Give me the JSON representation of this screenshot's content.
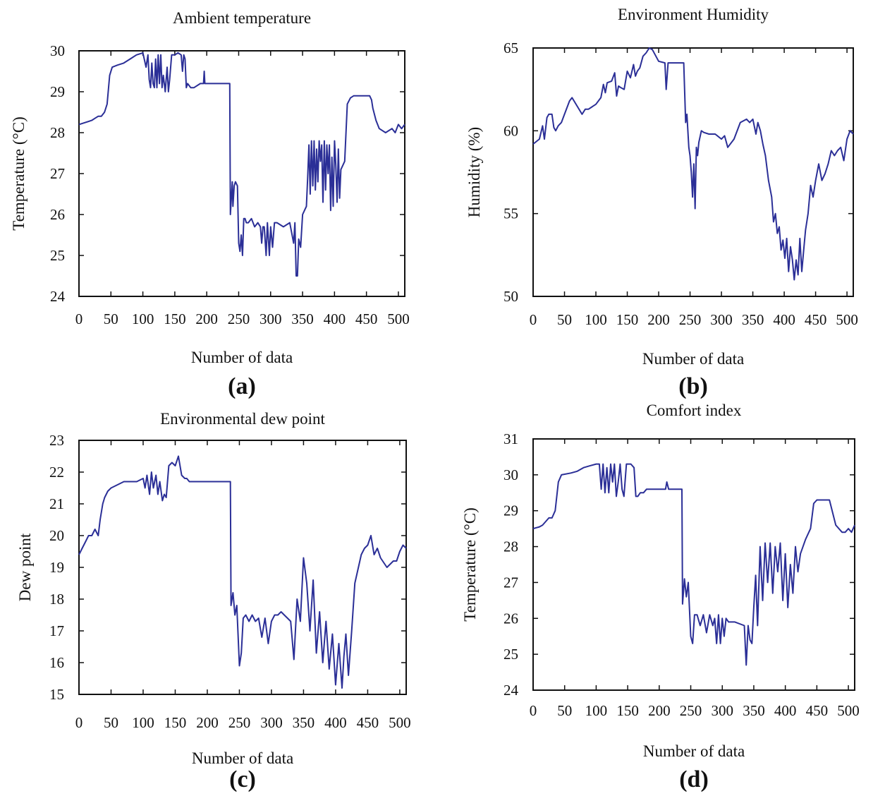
{
  "colors": {
    "series": "#2b2f97",
    "axes": "#111111",
    "background": "#ffffff"
  },
  "chart_data": [
    {
      "id": "a",
      "type": "line",
      "panel_label": "(a)",
      "title": "Ambient temperature",
      "xlabel": "Number of data",
      "ylabel": "Temperature (°C)",
      "xlim": [
        0,
        510
      ],
      "ylim": [
        24,
        30
      ],
      "xticks": [
        0,
        50,
        100,
        150,
        200,
        250,
        300,
        350,
        400,
        450,
        500
      ],
      "yticks": [
        24,
        25,
        26,
        27,
        28,
        29,
        30
      ],
      "grid": false,
      "series": [
        {
          "x": [
            0,
            20,
            25,
            30,
            35,
            40,
            44,
            48,
            52,
            60,
            70,
            80,
            90,
            100,
            105,
            108,
            110,
            112,
            114,
            116,
            118,
            120,
            122,
            124,
            126,
            128,
            130,
            132,
            135,
            138,
            140,
            142,
            145,
            150,
            155,
            160,
            162,
            164,
            166,
            168,
            170,
            175,
            180,
            190,
            195,
            196,
            197,
            200,
            210,
            220,
            236,
            237,
            240,
            241,
            243,
            245,
            248,
            250,
            252,
            254,
            256,
            258,
            260,
            262,
            265,
            270,
            275,
            280,
            284,
            286,
            288,
            290,
            293,
            295,
            298,
            300,
            303,
            306,
            310,
            320,
            330,
            336,
            338,
            340,
            342,
            344,
            347,
            350,
            353,
            356,
            358,
            360,
            362,
            364,
            366,
            368,
            370,
            372,
            374,
            376,
            378,
            380,
            382,
            384,
            386,
            388,
            390,
            392,
            394,
            396,
            398,
            400,
            402,
            404,
            406,
            408,
            410,
            413,
            416,
            420,
            425,
            430,
            440,
            445,
            450,
            455,
            458,
            460,
            465,
            470,
            480,
            490,
            495,
            500,
            505,
            510
          ],
          "y": [
            28.2,
            28.3,
            28.35,
            28.4,
            28.4,
            28.5,
            28.7,
            29.4,
            29.6,
            29.65,
            29.7,
            29.8,
            29.9,
            29.95,
            29.6,
            29.9,
            29.3,
            29.1,
            29.7,
            29.2,
            29.1,
            29.8,
            29.1,
            29.9,
            29.2,
            29.9,
            29.1,
            29.4,
            29.0,
            29.6,
            29.0,
            29.3,
            29.9,
            29.9,
            29.95,
            29.9,
            29.5,
            29.9,
            29.8,
            29.1,
            29.2,
            29.1,
            29.1,
            29.2,
            29.2,
            29.5,
            29.2,
            29.2,
            29.2,
            29.2,
            29.2,
            26.0,
            26.8,
            26.2,
            26.7,
            26.8,
            26.7,
            25.3,
            25.1,
            25.5,
            25.0,
            25.9,
            25.9,
            25.8,
            25.8,
            25.9,
            25.7,
            25.8,
            25.7,
            25.3,
            25.7,
            25.7,
            25.0,
            25.8,
            25.0,
            25.7,
            25.2,
            25.8,
            25.8,
            25.7,
            25.8,
            25.3,
            25.8,
            24.5,
            24.5,
            25.4,
            25.2,
            26.0,
            26.1,
            26.2,
            26.9,
            27.7,
            26.5,
            27.8,
            26.7,
            27.8,
            26.6,
            27.6,
            26.8,
            27.8,
            27.3,
            27.7,
            26.3,
            27.8,
            26.6,
            27.7,
            27.0,
            27.7,
            26.1,
            27.4,
            26.2,
            27.8,
            27.2,
            26.3,
            27.6,
            26.4,
            27.1,
            27.2,
            27.3,
            28.7,
            28.85,
            28.9,
            28.9,
            28.9,
            28.9,
            28.9,
            28.8,
            28.6,
            28.3,
            28.1,
            28.0,
            28.1,
            28.0,
            28.2,
            28.1,
            28.2
          ]
        }
      ]
    },
    {
      "id": "b",
      "type": "line",
      "panel_label": "(b)",
      "title": "Environment Humidity",
      "xlabel": "Number of data",
      "ylabel": "Humidity (%)",
      "xlim": [
        0,
        510
      ],
      "ylim": [
        50,
        65
      ],
      "xticks": [
        0,
        50,
        100,
        150,
        200,
        250,
        300,
        350,
        400,
        450,
        500
      ],
      "yticks": [
        50,
        55,
        60,
        65
      ],
      "grid": false,
      "series": [
        {
          "x": [
            0,
            10,
            15,
            18,
            22,
            25,
            30,
            33,
            36,
            40,
            45,
            50,
            58,
            62,
            70,
            78,
            83,
            88,
            92,
            96,
            100,
            108,
            112,
            115,
            118,
            125,
            130,
            133,
            136,
            140,
            145,
            150,
            155,
            160,
            163,
            166,
            170,
            175,
            180,
            185,
            190,
            200,
            210,
            212,
            215,
            218,
            222,
            225,
            230,
            235,
            240,
            243,
            245,
            248,
            250,
            252,
            254,
            256,
            258,
            260,
            262,
            264,
            268,
            272,
            280,
            290,
            300,
            305,
            310,
            320,
            330,
            340,
            345,
            350,
            355,
            358,
            362,
            366,
            370,
            375,
            380,
            383,
            386,
            389,
            392,
            395,
            398,
            401,
            404,
            407,
            410,
            413,
            416,
            419,
            422,
            425,
            428,
            431,
            434,
            438,
            442,
            446,
            450,
            455,
            460,
            465,
            470,
            475,
            480,
            485,
            490,
            495,
            500,
            505,
            510
          ],
          "y": [
            59.2,
            59.5,
            60.3,
            59.5,
            60.8,
            61.0,
            61.0,
            60.2,
            60.0,
            60.3,
            60.5,
            61.0,
            61.8,
            62.0,
            61.5,
            61.0,
            61.3,
            61.3,
            61.4,
            61.5,
            61.6,
            62.0,
            62.8,
            62.3,
            62.9,
            63.0,
            63.5,
            62.1,
            62.7,
            62.6,
            62.5,
            63.6,
            63.2,
            64.0,
            63.3,
            63.6,
            63.8,
            64.5,
            64.7,
            65.0,
            64.9,
            64.2,
            64.1,
            62.5,
            64.1,
            64.1,
            64.1,
            64.1,
            64.1,
            64.1,
            64.1,
            60.5,
            61.0,
            59.0,
            58.5,
            57.5,
            56.0,
            58.0,
            55.3,
            59.0,
            58.5,
            59.3,
            60.0,
            59.9,
            59.8,
            59.8,
            59.5,
            59.7,
            59.0,
            59.5,
            60.5,
            60.7,
            60.5,
            60.7,
            59.8,
            60.5,
            60.0,
            59.2,
            58.5,
            57.0,
            56.0,
            54.5,
            55.0,
            53.8,
            54.2,
            52.8,
            53.4,
            52.3,
            53.5,
            51.5,
            53.0,
            52.2,
            51.0,
            52.2,
            51.3,
            53.5,
            51.5,
            52.8,
            54.0,
            55.0,
            56.7,
            56.0,
            57.0,
            58.0,
            57.0,
            57.4,
            58.0,
            58.8,
            58.5,
            58.8,
            59.0,
            58.2,
            59.5,
            60.0,
            59.8
          ]
        }
      ]
    },
    {
      "id": "c",
      "type": "line",
      "panel_label": "(c)",
      "title": "Environmental dew point",
      "xlabel": "Number of data",
      "ylabel": "Dew point",
      "xlim": [
        0,
        510
      ],
      "ylim": [
        15,
        23
      ],
      "xticks": [
        0,
        50,
        100,
        150,
        200,
        250,
        300,
        350,
        400,
        450,
        500
      ],
      "yticks": [
        15,
        16,
        17,
        18,
        19,
        20,
        21,
        22,
        23
      ],
      "grid": false,
      "series": [
        {
          "x": [
            0,
            5,
            10,
            15,
            20,
            25,
            30,
            33,
            37,
            40,
            45,
            50,
            60,
            70,
            80,
            90,
            100,
            103,
            106,
            110,
            113,
            116,
            120,
            123,
            126,
            130,
            133,
            136,
            140,
            145,
            150,
            155,
            160,
            165,
            168,
            172,
            176,
            180,
            190,
            200,
            210,
            220,
            236,
            237,
            240,
            243,
            246,
            250,
            253,
            256,
            260,
            265,
            270,
            275,
            280,
            285,
            290,
            295,
            300,
            305,
            310,
            315,
            320,
            325,
            330,
            335,
            340,
            345,
            350,
            355,
            360,
            365,
            370,
            375,
            380,
            385,
            390,
            395,
            400,
            405,
            410,
            413,
            416,
            420,
            425,
            430,
            440,
            445,
            450,
            455,
            460,
            465,
            470,
            480,
            490,
            495,
            500,
            505,
            510
          ],
          "y": [
            19.4,
            19.6,
            19.8,
            20.0,
            20.0,
            20.2,
            20.0,
            20.5,
            21.0,
            21.2,
            21.4,
            21.5,
            21.6,
            21.7,
            21.7,
            21.7,
            21.8,
            21.5,
            21.9,
            21.3,
            22.0,
            21.5,
            21.9,
            21.3,
            21.7,
            21.1,
            21.3,
            21.2,
            22.2,
            22.3,
            22.2,
            22.5,
            21.9,
            21.8,
            21.8,
            21.7,
            21.7,
            21.7,
            21.7,
            21.7,
            21.7,
            21.7,
            21.7,
            17.8,
            18.2,
            17.5,
            17.8,
            15.9,
            16.3,
            17.4,
            17.5,
            17.3,
            17.5,
            17.3,
            17.4,
            16.8,
            17.4,
            16.6,
            17.3,
            17.5,
            17.5,
            17.6,
            17.5,
            17.4,
            17.3,
            16.1,
            18.0,
            17.3,
            19.3,
            18.5,
            17.0,
            18.6,
            16.3,
            17.6,
            16.0,
            17.3,
            15.8,
            16.9,
            15.3,
            16.6,
            15.2,
            16.2,
            16.9,
            15.6,
            17.0,
            18.5,
            19.4,
            19.6,
            19.7,
            20.0,
            19.4,
            19.6,
            19.3,
            19.0,
            19.2,
            19.2,
            19.5,
            19.7,
            19.6
          ]
        }
      ]
    },
    {
      "id": "d",
      "type": "line",
      "panel_label": "(d)",
      "title": "Comfort index",
      "xlabel": "Number of data",
      "ylabel": "Temperature (°C)",
      "xlim": [
        0,
        510
      ],
      "ylim": [
        24,
        31
      ],
      "xticks": [
        0,
        50,
        100,
        150,
        200,
        250,
        300,
        350,
        400,
        450,
        500
      ],
      "yticks": [
        24,
        25,
        26,
        27,
        28,
        29,
        30,
        31
      ],
      "grid": false,
      "series": [
        {
          "x": [
            0,
            10,
            15,
            20,
            25,
            30,
            35,
            40,
            45,
            60,
            70,
            80,
            90,
            100,
            105,
            108,
            111,
            114,
            117,
            120,
            123,
            126,
            129,
            132,
            135,
            138,
            141,
            144,
            148,
            150,
            155,
            160,
            163,
            166,
            170,
            175,
            180,
            190,
            200,
            210,
            212,
            215,
            220,
            236,
            237,
            240,
            243,
            246,
            250,
            253,
            256,
            260,
            265,
            270,
            275,
            280,
            285,
            288,
            291,
            294,
            297,
            300,
            303,
            306,
            310,
            320,
            335,
            338,
            341,
            344,
            347,
            350,
            353,
            356,
            360,
            364,
            368,
            372,
            376,
            380,
            384,
            388,
            392,
            396,
            400,
            404,
            408,
            412,
            416,
            420,
            424,
            428,
            432,
            440,
            445,
            450,
            460,
            465,
            470,
            480,
            490,
            495,
            500,
            505,
            510
          ],
          "y": [
            28.5,
            28.55,
            28.6,
            28.7,
            28.8,
            28.8,
            29.0,
            29.8,
            30.0,
            30.05,
            30.1,
            30.2,
            30.25,
            30.3,
            30.3,
            29.6,
            30.3,
            29.5,
            30.2,
            29.5,
            30.3,
            29.8,
            30.3,
            29.4,
            29.8,
            30.3,
            29.6,
            29.4,
            30.3,
            30.3,
            30.3,
            30.2,
            29.4,
            29.4,
            29.5,
            29.5,
            29.6,
            29.6,
            29.6,
            29.6,
            29.8,
            29.6,
            29.6,
            29.6,
            26.4,
            27.1,
            26.6,
            27.0,
            25.5,
            25.3,
            26.1,
            26.1,
            25.8,
            26.1,
            25.6,
            26.1,
            25.8,
            26.0,
            25.3,
            26.1,
            25.3,
            26.0,
            25.5,
            26.0,
            25.9,
            25.9,
            25.8,
            24.7,
            25.8,
            25.4,
            25.3,
            26.3,
            27.2,
            25.8,
            28.0,
            26.5,
            28.1,
            27.0,
            28.1,
            26.7,
            28.0,
            27.3,
            28.1,
            26.5,
            27.8,
            26.3,
            27.5,
            26.7,
            28.0,
            27.3,
            27.8,
            28.0,
            28.2,
            28.5,
            29.2,
            29.3,
            29.3,
            29.3,
            29.3,
            28.6,
            28.4,
            28.4,
            28.5,
            28.4,
            28.6
          ]
        }
      ]
    }
  ]
}
